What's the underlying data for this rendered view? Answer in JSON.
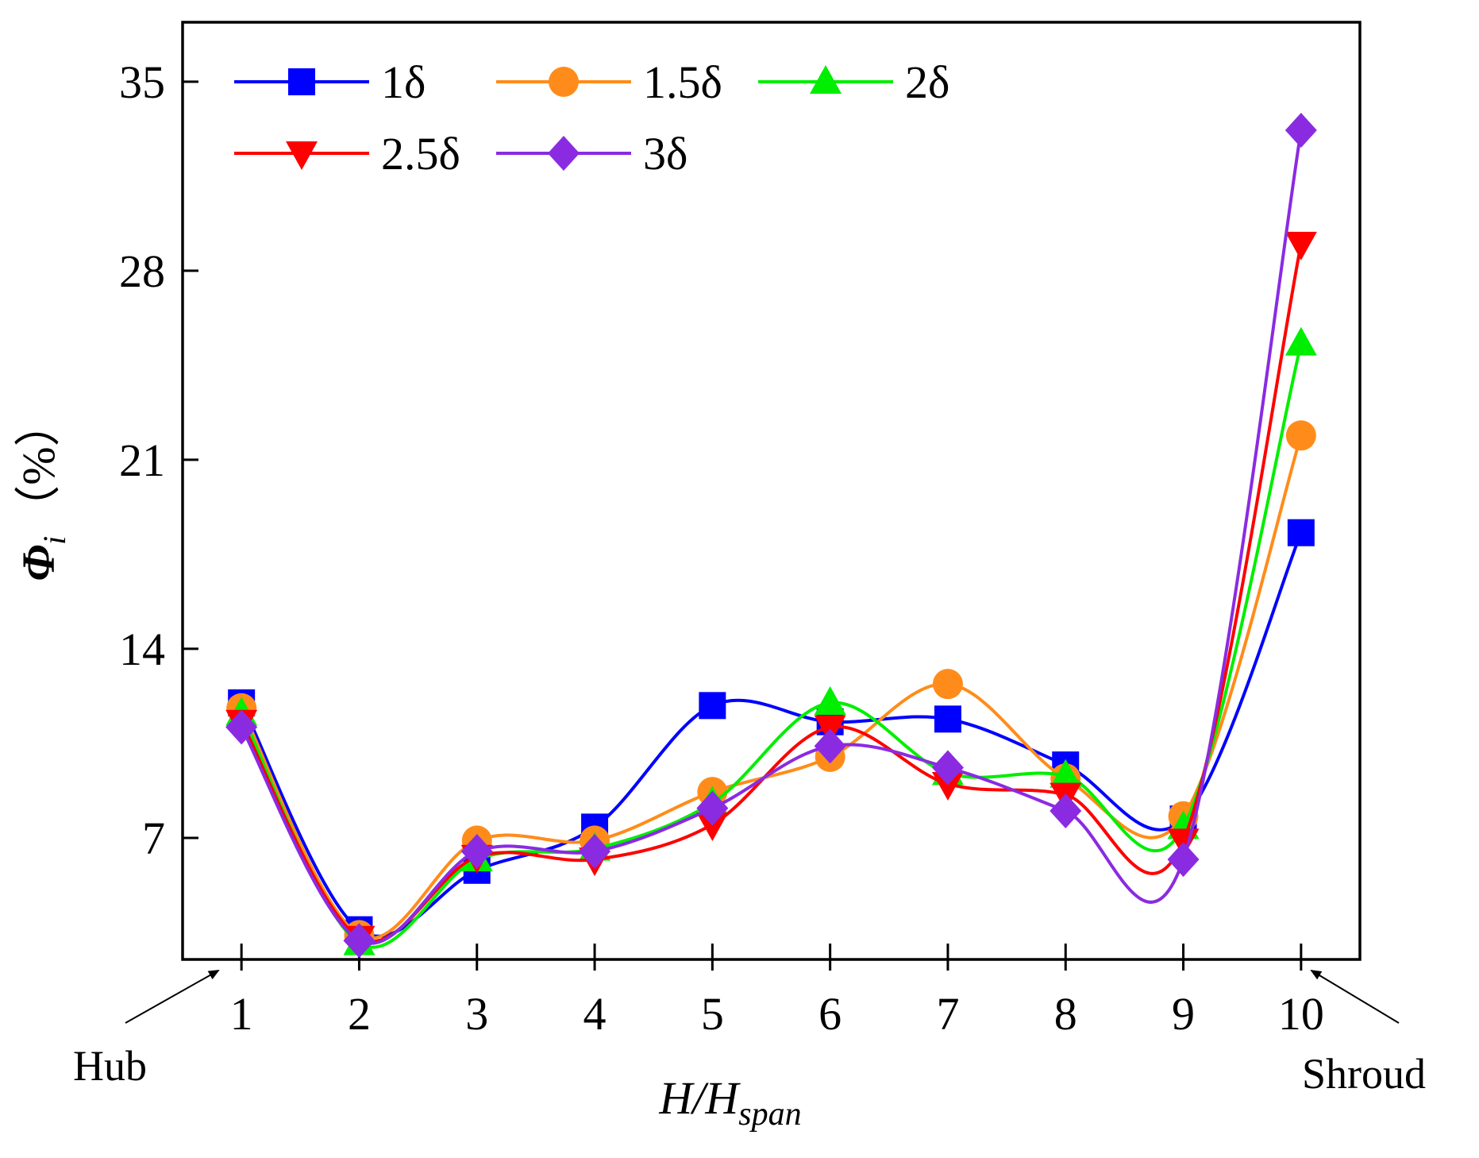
{
  "chart_data": {
    "type": "line",
    "xlabel_main": "H/H",
    "xlabel_sub": "span",
    "ylabel_main": "Φ",
    "ylabel_sub": "i",
    "ylabel_unit": "（%）",
    "x": [
      1,
      2,
      3,
      4,
      5,
      6,
      7,
      8,
      9,
      10
    ],
    "xlim": [
      0.5,
      10.5
    ],
    "ylim": [
      2.5,
      37.2
    ],
    "yticks": [
      7,
      14,
      21,
      28,
      35
    ],
    "xticks": [
      1,
      2,
      3,
      4,
      5,
      6,
      7,
      8,
      9,
      10
    ],
    "grid": false,
    "legend_position": "top-left",
    "series": [
      {
        "name": "1δ",
        "color": "#0000ff",
        "marker": "square",
        "values": [
          12.0,
          3.6,
          5.8,
          7.4,
          11.9,
          11.3,
          11.4,
          9.7,
          7.7,
          18.3
        ]
      },
      {
        "name": "1.5δ",
        "color": "#ff8c1a",
        "marker": "circle",
        "values": [
          11.8,
          3.4,
          6.9,
          6.9,
          8.7,
          10.0,
          12.7,
          9.2,
          7.8,
          21.9
        ]
      },
      {
        "name": "2δ",
        "color": "#00ee00",
        "marker": "triangle-up",
        "values": [
          11.6,
          3.1,
          6.2,
          6.6,
          8.3,
          12.0,
          9.4,
          9.3,
          7.4,
          25.3
        ]
      },
      {
        "name": "2.5δ",
        "color": "#ff0000",
        "marker": "triangle-down",
        "values": [
          11.3,
          3.3,
          6.3,
          6.2,
          7.5,
          11.1,
          9.0,
          8.6,
          6.9,
          29.0
        ]
      },
      {
        "name": "3δ",
        "color": "#8a2be2",
        "marker": "diamond",
        "values": [
          11.1,
          3.2,
          6.5,
          6.5,
          8.1,
          10.4,
          9.6,
          8.0,
          6.2,
          33.2
        ]
      }
    ]
  },
  "annotations": {
    "hub_label": "Hub",
    "shroud_label": "Shroud"
  }
}
